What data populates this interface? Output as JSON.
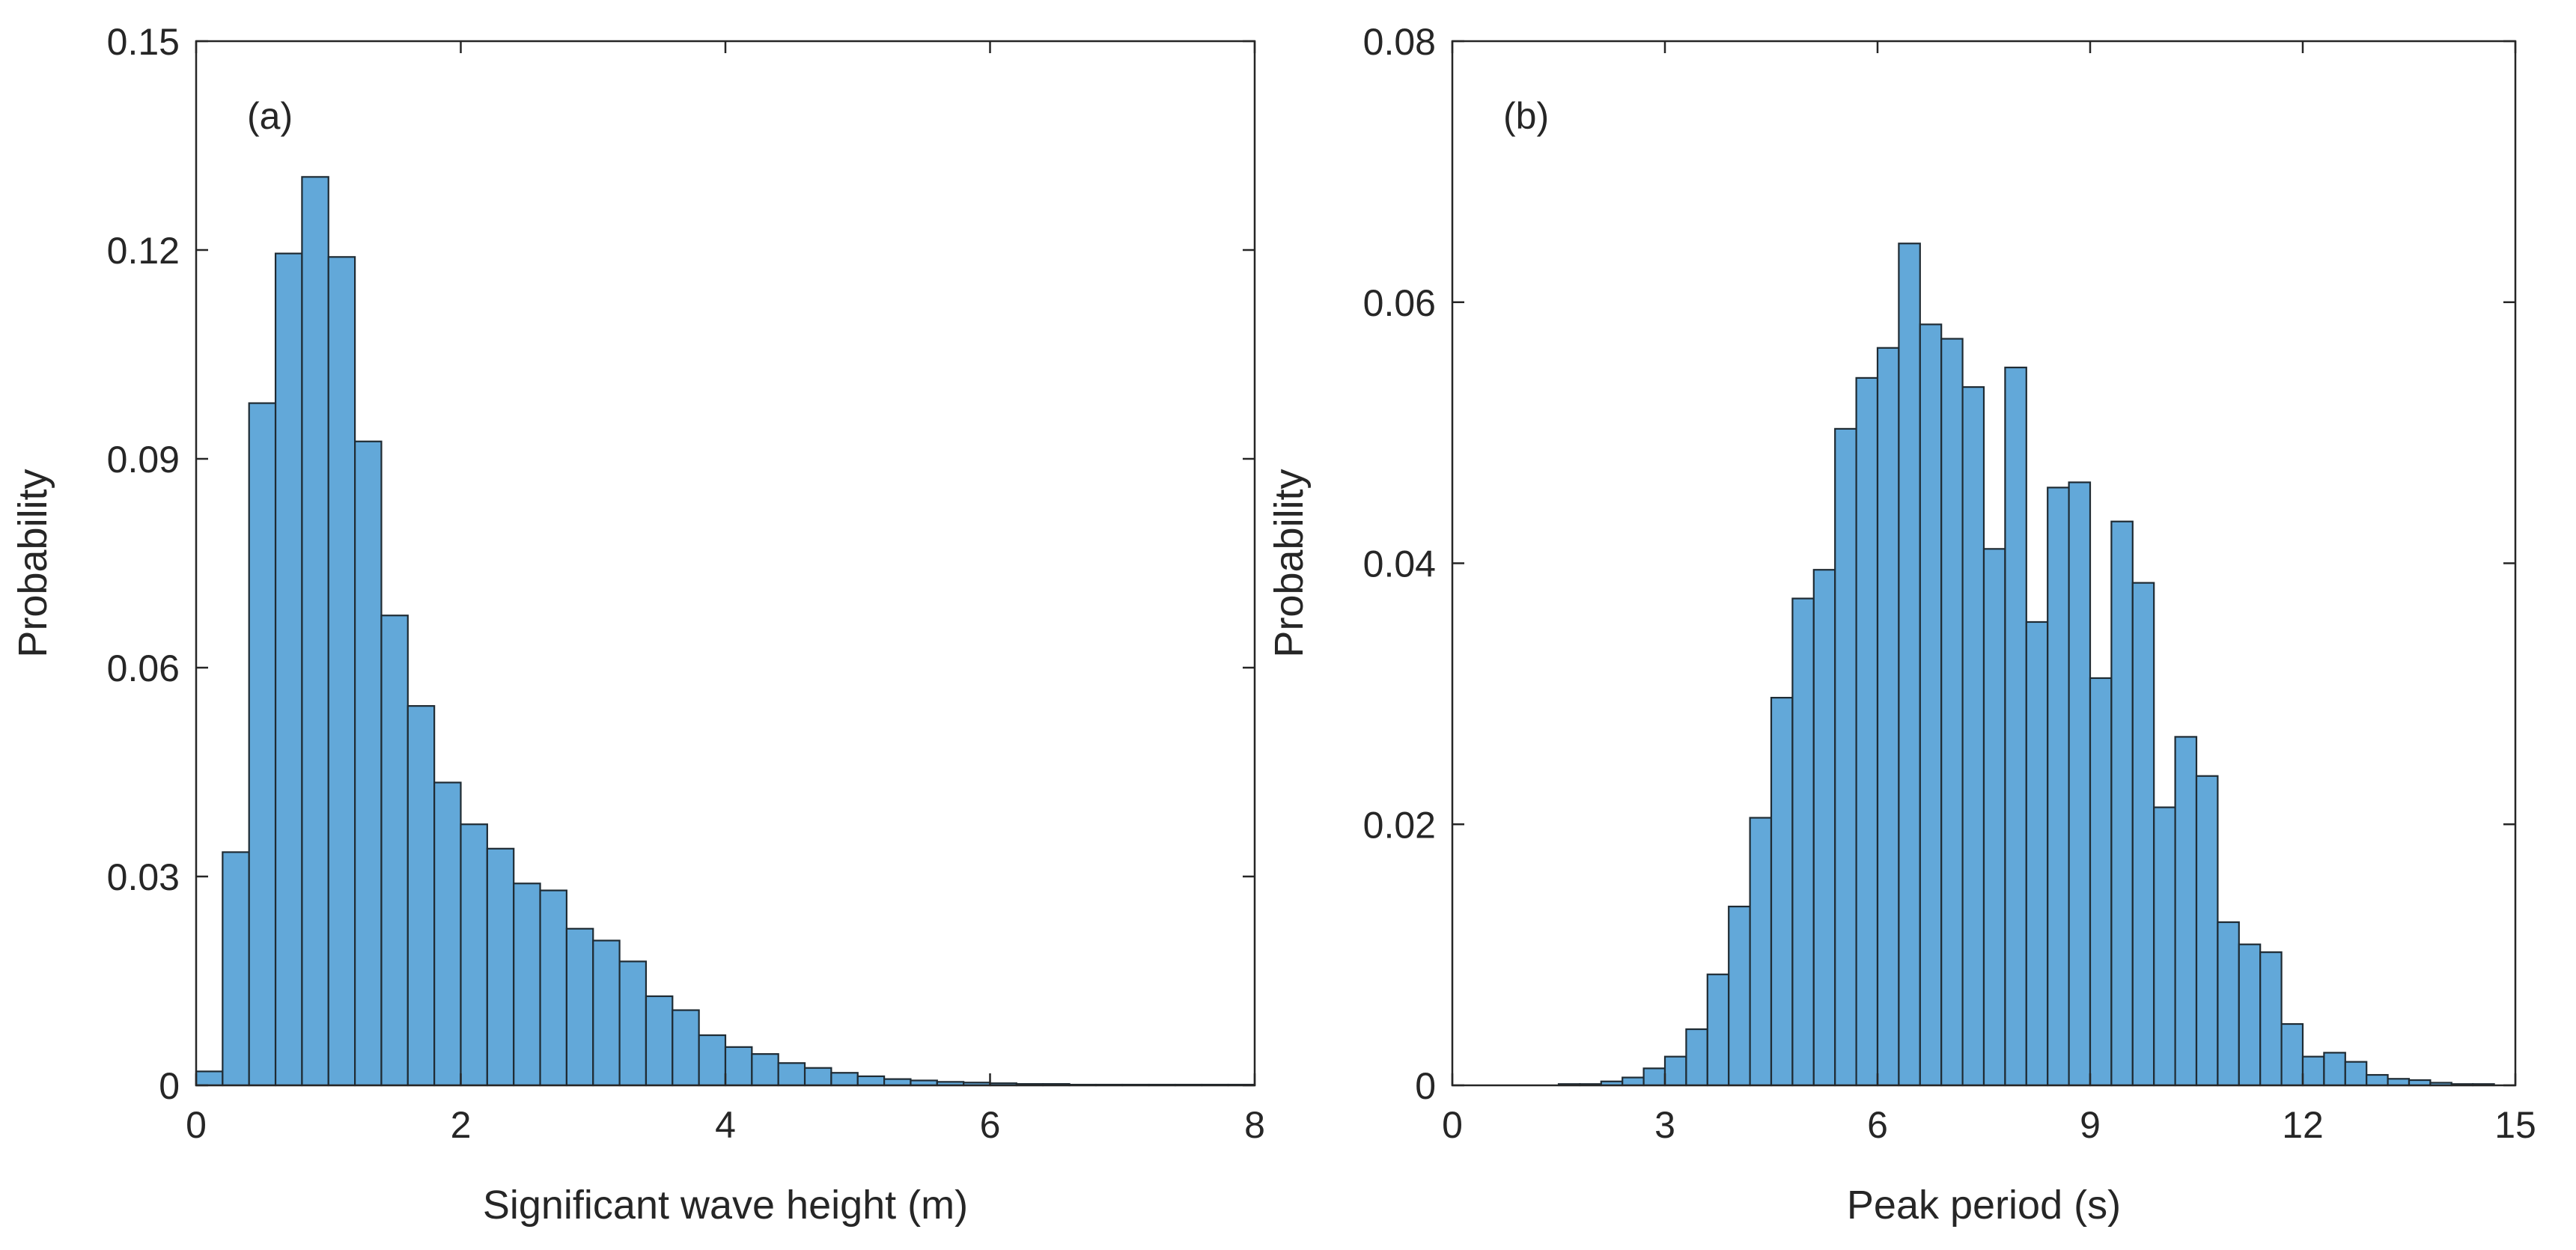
{
  "chart_data": [
    {
      "type": "bar",
      "subtype": "histogram",
      "panel_label": "(a)",
      "xlabel": "Significant wave height (m)",
      "ylabel": "Probability",
      "xlim": [
        0,
        8
      ],
      "ylim": [
        0,
        0.15
      ],
      "xticks": [
        0,
        2,
        4,
        6,
        8
      ],
      "xtick_labels": [
        "0",
        "2",
        "4",
        "6",
        "8"
      ],
      "yticks": [
        0,
        0.03,
        0.06,
        0.09,
        0.12,
        0.15
      ],
      "ytick_labels": [
        "0",
        "0.03",
        "0.06",
        "0.09",
        "0.12",
        "0.15"
      ],
      "bar_color": "#62a8d9",
      "edge_color": "#1f2b33",
      "bin_start": 0,
      "bin_width": 0.2,
      "values": [
        0.002,
        0.0335,
        0.098,
        0.1195,
        0.1305,
        0.119,
        0.0925,
        0.0675,
        0.0545,
        0.0435,
        0.0375,
        0.034,
        0.029,
        0.028,
        0.0225,
        0.0208,
        0.0178,
        0.0128,
        0.0108,
        0.0072,
        0.0055,
        0.0045,
        0.0032,
        0.0025,
        0.0018,
        0.0013,
        0.0009,
        0.0007,
        0.0005,
        0.0004,
        0.0003,
        0.0002,
        0.0002,
        0.0001,
        0.0001,
        0.0001,
        0.0001,
        0.0001,
        0.0001,
        0.0001
      ]
    },
    {
      "type": "bar",
      "subtype": "histogram",
      "panel_label": "(b)",
      "xlabel": "Peak period (s)",
      "ylabel": "Probability",
      "xlim": [
        0,
        15
      ],
      "ylim": [
        0,
        0.08
      ],
      "xticks": [
        0,
        3,
        6,
        9,
        12,
        15
      ],
      "xtick_labels": [
        "0",
        "3",
        "6",
        "9",
        "12",
        "15"
      ],
      "yticks": [
        0,
        0.02,
        0.04,
        0.06,
        0.08
      ],
      "ytick_labels": [
        "0",
        "0.02",
        "0.04",
        "0.06",
        "0.08"
      ],
      "bar_color": "#62a8d9",
      "edge_color": "#1f2b33",
      "bin_start": 1.5,
      "bin_width": 0.3,
      "values": [
        0.0001,
        0.0001,
        0.0003,
        0.0006,
        0.0013,
        0.0022,
        0.0043,
        0.0085,
        0.0137,
        0.0205,
        0.0297,
        0.0373,
        0.0395,
        0.0503,
        0.0542,
        0.0565,
        0.0645,
        0.0583,
        0.0572,
        0.0535,
        0.0411,
        0.055,
        0.0355,
        0.0458,
        0.0462,
        0.0312,
        0.0432,
        0.0385,
        0.0213,
        0.0267,
        0.0237,
        0.0125,
        0.0108,
        0.0102,
        0.0047,
        0.0022,
        0.0025,
        0.0018,
        0.0008,
        0.0005,
        0.0004,
        0.0002,
        0.0001,
        0.0001
      ]
    }
  ]
}
